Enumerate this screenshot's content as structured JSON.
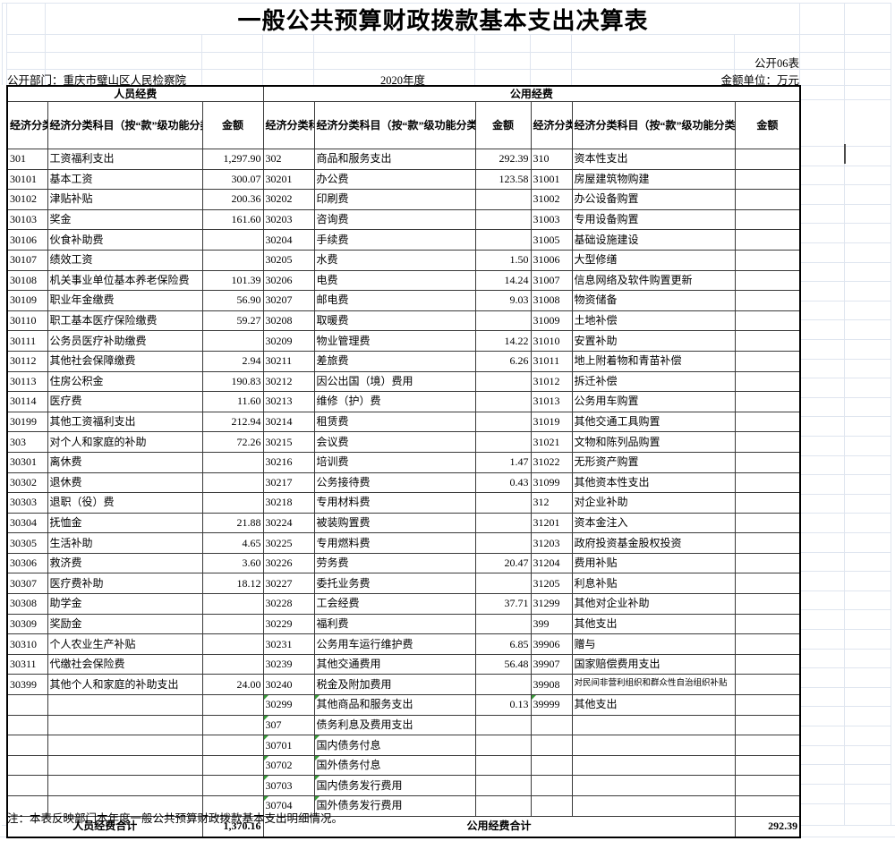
{
  "meta": {
    "title": "一般公共预算财政拨款基本支出决算表",
    "sheet_label": "公开06表",
    "department": "公开部门：重庆市璧山区人民检察院",
    "year": "2020年度",
    "unit": "金额单位：万元",
    "note": "注：本表反映部门本年度一般公共预算财政拨款基本支出明细情况。"
  },
  "header": {
    "personnel_band": "人员经费",
    "public_band": "公用经费",
    "code_header": "经济分类科目编码",
    "subject_header": "经济分类科目（按“款”级功能分类科目）",
    "amount_header": "金额"
  },
  "totals": {
    "personnel_label": "人员经费合计",
    "personnel_amount": "1,370.16",
    "public_label": "公用经费合计",
    "public_amount": "292.39"
  },
  "colors": {
    "gridline": "#dfe5ef",
    "border": "#000000",
    "error_marker_green": "#3a9a3a"
  },
  "rows": [
    {
      "l": {
        "c": "301",
        "n": "工资福利支出",
        "a": "1,297.90",
        "p": 1
      },
      "m": {
        "c": "302",
        "n": "商品和服务支出",
        "a": "292.39",
        "p": 1
      },
      "r": {
        "c": "310",
        "n": "资本性支出",
        "p": 1
      }
    },
    {
      "l": {
        "c": "30101",
        "n": "基本工资",
        "a": "300.07"
      },
      "m": {
        "c": "30201",
        "n": "办公费",
        "a": "123.58"
      },
      "r": {
        "c": "31001",
        "n": "房屋建筑物购建"
      }
    },
    {
      "l": {
        "c": "30102",
        "n": "津贴补贴",
        "a": "200.36"
      },
      "m": {
        "c": "30202",
        "n": "印刷费"
      },
      "r": {
        "c": "31002",
        "n": "办公设备购置"
      }
    },
    {
      "l": {
        "c": "30103",
        "n": "奖金",
        "a": "161.60"
      },
      "m": {
        "c": "30203",
        "n": "咨询费"
      },
      "r": {
        "c": "31003",
        "n": "专用设备购置"
      }
    },
    {
      "l": {
        "c": "30106",
        "n": "伙食补助费"
      },
      "m": {
        "c": "30204",
        "n": "手续费"
      },
      "r": {
        "c": "31005",
        "n": "基础设施建设"
      }
    },
    {
      "l": {
        "c": "30107",
        "n": "绩效工资"
      },
      "m": {
        "c": "30205",
        "n": "水费",
        "a": "1.50"
      },
      "r": {
        "c": "31006",
        "n": "大型修缮"
      }
    },
    {
      "l": {
        "c": "30108",
        "n": "机关事业单位基本养老保险费",
        "a": "101.39"
      },
      "m": {
        "c": "30206",
        "n": "电费",
        "a": "14.24"
      },
      "r": {
        "c": "31007",
        "n": "信息网络及软件购置更新"
      }
    },
    {
      "l": {
        "c": "30109",
        "n": "职业年金缴费",
        "a": "56.90"
      },
      "m": {
        "c": "30207",
        "n": "邮电费",
        "a": "9.03"
      },
      "r": {
        "c": "31008",
        "n": "物资储备"
      }
    },
    {
      "l": {
        "c": "30110",
        "n": "职工基本医疗保险缴费",
        "a": "59.27"
      },
      "m": {
        "c": "30208",
        "n": "取暖费"
      },
      "r": {
        "c": "31009",
        "n": "土地补偿"
      }
    },
    {
      "l": {
        "c": "30111",
        "n": "公务员医疗补助缴费"
      },
      "m": {
        "c": "30209",
        "n": "物业管理费",
        "a": "14.22"
      },
      "r": {
        "c": "31010",
        "n": "安置补助"
      }
    },
    {
      "l": {
        "c": "30112",
        "n": "其他社会保障缴费",
        "a": "2.94"
      },
      "m": {
        "c": "30211",
        "n": "差旅费",
        "a": "6.26"
      },
      "r": {
        "c": "31011",
        "n": "地上附着物和青苗补偿"
      }
    },
    {
      "l": {
        "c": "30113",
        "n": "住房公积金",
        "a": "190.83"
      },
      "m": {
        "c": "30212",
        "n": "因公出国（境）费用"
      },
      "r": {
        "c": "31012",
        "n": "拆迁补偿"
      }
    },
    {
      "l": {
        "c": "30114",
        "n": "医疗费",
        "a": "11.60"
      },
      "m": {
        "c": "30213",
        "n": "维修（护）费"
      },
      "r": {
        "c": "31013",
        "n": "公务用车购置"
      }
    },
    {
      "l": {
        "c": "30199",
        "n": "其他工资福利支出",
        "a": "212.94"
      },
      "m": {
        "c": "30214",
        "n": "租赁费"
      },
      "r": {
        "c": "31019",
        "n": "其他交通工具购置"
      }
    },
    {
      "l": {
        "c": "303",
        "n": "对个人和家庭的补助",
        "a": "72.26",
        "p": 1
      },
      "m": {
        "c": "30215",
        "n": "会议费"
      },
      "r": {
        "c": "31021",
        "n": "文物和陈列品购置"
      }
    },
    {
      "l": {
        "c": "30301",
        "n": "离休费"
      },
      "m": {
        "c": "30216",
        "n": "培训费",
        "a": "1.47"
      },
      "r": {
        "c": "31022",
        "n": "无形资产购置"
      }
    },
    {
      "l": {
        "c": "30302",
        "n": "退休费"
      },
      "m": {
        "c": "30217",
        "n": "公务接待费",
        "a": "0.43"
      },
      "r": {
        "c": "31099",
        "n": "其他资本性支出"
      }
    },
    {
      "l": {
        "c": "30303",
        "n": "退职（役）费"
      },
      "m": {
        "c": "30218",
        "n": "专用材料费"
      },
      "r": {
        "c": "312",
        "n": "对企业补助",
        "p": 1
      }
    },
    {
      "l": {
        "c": "30304",
        "n": "抚恤金",
        "a": "21.88"
      },
      "m": {
        "c": "30224",
        "n": "被装购置费"
      },
      "r": {
        "c": "31201",
        "n": "资本金注入"
      }
    },
    {
      "l": {
        "c": "30305",
        "n": "生活补助",
        "a": "4.65"
      },
      "m": {
        "c": "30225",
        "n": "专用燃料费"
      },
      "r": {
        "c": "31203",
        "n": "政府投资基金股权投资"
      }
    },
    {
      "l": {
        "c": "30306",
        "n": "救济费",
        "a": "3.60"
      },
      "m": {
        "c": "30226",
        "n": "劳务费",
        "a": "20.47"
      },
      "r": {
        "c": "31204",
        "n": "费用补贴"
      }
    },
    {
      "l": {
        "c": "30307",
        "n": "医疗费补助",
        "a": "18.12"
      },
      "m": {
        "c": "30227",
        "n": "委托业务费"
      },
      "r": {
        "c": "31205",
        "n": "利息补贴"
      }
    },
    {
      "l": {
        "c": "30308",
        "n": "助学金"
      },
      "m": {
        "c": "30228",
        "n": "工会经费",
        "a": "37.71"
      },
      "r": {
        "c": "31299",
        "n": "其他对企业补助"
      }
    },
    {
      "l": {
        "c": "30309",
        "n": "奖励金"
      },
      "m": {
        "c": "30229",
        "n": "福利费"
      },
      "r": {
        "c": "399",
        "n": "其他支出",
        "p": 1
      }
    },
    {
      "l": {
        "c": "30310",
        "n": "个人农业生产补贴"
      },
      "m": {
        "c": "30231",
        "n": "公务用车运行维护费",
        "a": "6.85"
      },
      "r": {
        "c": "39906",
        "n": "赠与"
      }
    },
    {
      "l": {
        "c": "30311",
        "n": "代缴社会保险费"
      },
      "m": {
        "c": "30239",
        "n": "其他交通费用",
        "a": "56.48"
      },
      "r": {
        "c": "39907",
        "n": "国家赔偿费用支出"
      }
    },
    {
      "l": {
        "c": "30399",
        "n": "其他个人和家庭的补助支出",
        "a": "24.00"
      },
      "m": {
        "c": "30240",
        "n": "税金及附加费用"
      },
      "r": {
        "c": "39908",
        "n": "对民间非营利组织和群众性自治组织补贴",
        "s": 1
      }
    },
    {
      "l": {},
      "m": {
        "c": "30299",
        "n": "其他商品和服务支出",
        "a": "0.13",
        "t": [
          "c",
          "n"
        ]
      },
      "r": {
        "c": "39999",
        "n": "其他支出",
        "t": [
          "c"
        ]
      }
    },
    {
      "l": {},
      "m": {
        "c": "307",
        "n": "债务利息及费用支出",
        "p": 1,
        "t": [
          "c"
        ]
      },
      "r": {}
    },
    {
      "l": {},
      "m": {
        "c": "30701",
        "n": "国内债务付息",
        "t": [
          "c",
          "n"
        ]
      },
      "r": {}
    },
    {
      "l": {},
      "m": {
        "c": "30702",
        "n": "国外债务付息",
        "t": [
          "c",
          "n"
        ]
      },
      "r": {}
    },
    {
      "l": {},
      "m": {
        "c": "30703",
        "n": "国内债务发行费用",
        "t": [
          "c",
          "n"
        ]
      },
      "r": {}
    },
    {
      "l": {},
      "m": {
        "c": "30704",
        "n": "国外债务发行费用",
        "t": [
          "c",
          "n"
        ]
      },
      "r": {}
    }
  ]
}
